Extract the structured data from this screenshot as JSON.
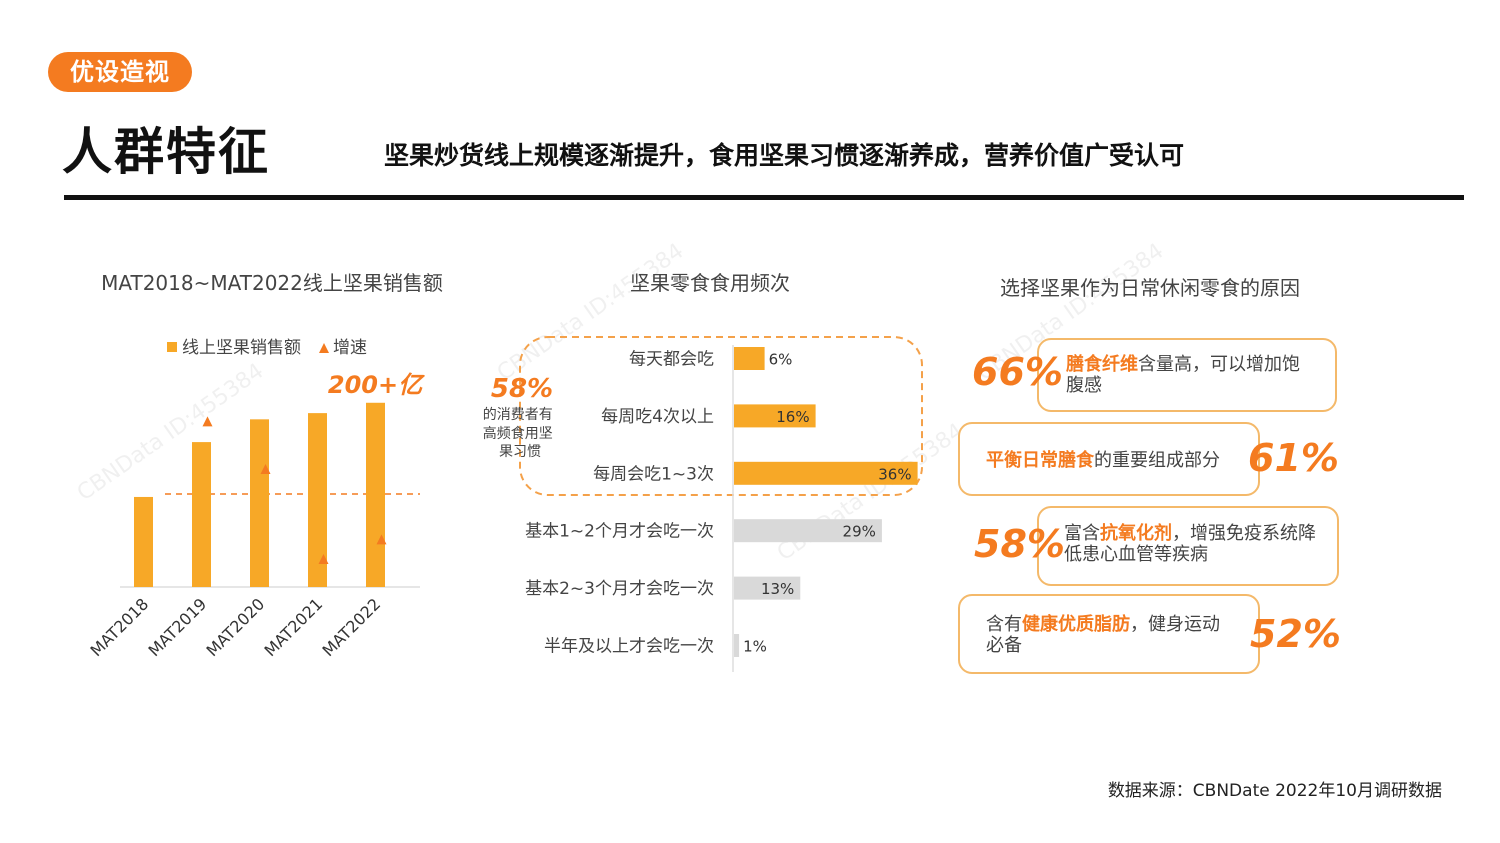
{
  "header": {
    "logo": "优设造视",
    "title": "人群特征",
    "subtitle": "坚果炒货线上规模逐渐提升，食用坚果习惯逐渐养成，营养价值广受认可",
    "source": "数据来源：CBNDate 2022年10月调研数据"
  },
  "watermark_text": "CBNData ID:455384",
  "colors": {
    "accent": "#f47b20",
    "bar": "#f7a827",
    "bar_gray": "#d9d9d9",
    "box_border": "#f4b96a"
  },
  "chart_data": [
    {
      "type": "bar",
      "title": "MAT2018~MAT2022线上坚果销售额",
      "categories": [
        "MAT2018",
        "MAT2019",
        "MAT2020",
        "MAT2021",
        "MAT2022"
      ],
      "series": [
        {
          "name": "线上坚果销售额",
          "values": [
            87,
            140,
            162,
            168,
            178
          ]
        },
        {
          "name": "增速",
          "values": [
            null,
            160,
            114,
            27,
            46
          ]
        }
      ],
      "annotation": "200+亿",
      "legend": [
        "线上坚果销售额",
        "增速"
      ],
      "ylim": [
        0,
        200
      ]
    },
    {
      "type": "bar",
      "orientation": "horizontal",
      "title": "坚果零食食用频次",
      "categories": [
        "每天都会吃",
        "每周吃4次以上",
        "每周会吃1~3次",
        "基本1~2个月才会吃一次",
        "基本2~3个月才会吃一次",
        "半年及以上才会吃一次"
      ],
      "values": [
        6,
        16,
        36,
        29,
        13,
        1
      ],
      "value_labels": [
        "6%",
        "16%",
        "36%",
        "29%",
        "13%",
        "1%"
      ],
      "highlight_count": 3,
      "callout": {
        "value": "58%",
        "text": "的消费者有高频食用坚果习惯"
      },
      "xlim": [
        0,
        40
      ]
    }
  ],
  "reasons": {
    "title": "选择坚果作为日常休闲零食的原因",
    "items": [
      {
        "pct": "66%",
        "hl": "膳食纤维",
        "text": "含量高，可以增加饱腹感"
      },
      {
        "pct": "61%",
        "hl": "平衡日常膳食",
        "text": "的重要组成部分"
      },
      {
        "pct": "58%",
        "pre": "富含",
        "hl": "抗氧化剂",
        "text": "，增强免疫系统降低患心血管等疾病"
      },
      {
        "pct": "52%",
        "pre": "含有",
        "hl": "健康优质脂肪",
        "text": "，健身运动必备"
      }
    ]
  }
}
